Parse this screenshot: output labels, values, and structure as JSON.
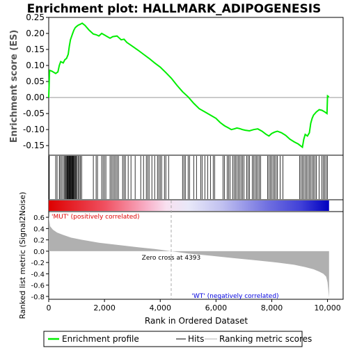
{
  "chart_data": {
    "type": "line",
    "title": "Enrichment plot: HALLMARK_ADIPOGENESIS",
    "top_panel": {
      "ylabel": "Enrichment score (ES)",
      "ylim": [
        -0.18,
        0.25
      ],
      "yticks": [
        -0.15,
        -0.1,
        -0.05,
        0.0,
        0.05,
        0.1,
        0.15,
        0.2,
        0.25
      ],
      "ytick_labels": [
        "-0.15",
        "-0.10",
        "-0.05",
        "0.00",
        "0.05",
        "0.10",
        "0.15",
        "0.20",
        "0.25"
      ],
      "series": [
        {
          "name": "Enrichment profile",
          "color": "#00ee00",
          "x": [
            0,
            30,
            120,
            250,
            330,
            380,
            430,
            520,
            580,
            640,
            700,
            740,
            780,
            820,
            860,
            900,
            950,
            1000,
            1060,
            1120,
            1200,
            1300,
            1450,
            1600,
            1700,
            1800,
            1900,
            2000,
            2100,
            2200,
            2300,
            2450,
            2600,
            2700,
            2800,
            3000,
            3200,
            3400,
            3600,
            3800,
            4000,
            4200,
            4400,
            4600,
            4800,
            5000,
            5200,
            5400,
            5600,
            5800,
            6000,
            6150,
            6300,
            6450,
            6550,
            6650,
            6750,
            6850,
            6950,
            7050,
            7200,
            7350,
            7500,
            7650,
            7800,
            7900,
            8000,
            8100,
            8200,
            8350,
            8500,
            8650,
            8800,
            8950,
            9100,
            9150,
            9200,
            9280,
            9350,
            9400,
            9450,
            9500,
            9600,
            9700,
            9800,
            9900,
            9980,
            10000,
            10050
          ],
          "y": [
            0.0,
            0.085,
            0.082,
            0.075,
            0.08,
            0.1,
            0.112,
            0.108,
            0.118,
            0.122,
            0.135,
            0.16,
            0.18,
            0.19,
            0.2,
            0.21,
            0.218,
            0.222,
            0.226,
            0.228,
            0.232,
            0.225,
            0.21,
            0.198,
            0.196,
            0.192,
            0.2,
            0.195,
            0.19,
            0.185,
            0.19,
            0.192,
            0.18,
            0.182,
            0.172,
            0.16,
            0.148,
            0.135,
            0.122,
            0.108,
            0.095,
            0.078,
            0.06,
            0.038,
            0.018,
            0.002,
            -0.018,
            -0.035,
            -0.045,
            -0.055,
            -0.065,
            -0.078,
            -0.088,
            -0.095,
            -0.1,
            -0.098,
            -0.095,
            -0.097,
            -0.1,
            -0.102,
            -0.104,
            -0.1,
            -0.098,
            -0.105,
            -0.115,
            -0.12,
            -0.112,
            -0.108,
            -0.105,
            -0.11,
            -0.118,
            -0.13,
            -0.138,
            -0.145,
            -0.155,
            -0.13,
            -0.115,
            -0.12,
            -0.11,
            -0.08,
            -0.065,
            -0.055,
            -0.045,
            -0.038,
            -0.04,
            -0.045,
            -0.05,
            0.005,
            0.002
          ]
        }
      ]
    },
    "hits_panel": {
      "hit_positions": [
        20,
        250,
        300,
        380,
        420,
        470,
        520,
        560,
        600,
        620,
        650,
        670,
        690,
        710,
        730,
        750,
        770,
        790,
        810,
        830,
        850,
        870,
        890,
        910,
        930,
        960,
        990,
        1020,
        1060,
        1100,
        1140,
        1180,
        1600,
        1700,
        1750,
        1900,
        1950,
        2000,
        2050,
        2200,
        2250,
        2300,
        2350,
        2400,
        2450,
        2500,
        2650,
        2700,
        2750,
        2850,
        2950,
        3100,
        3300,
        3400,
        3500,
        3550,
        3600,
        3700,
        3800,
        3900,
        3950,
        4000,
        4050,
        4150,
        4200,
        4300,
        4800,
        4850,
        4900,
        5000,
        5050,
        5200,
        5300,
        5450,
        5500,
        5600,
        5700,
        5800,
        5900,
        5950,
        6250,
        6300,
        6400,
        6450,
        6500,
        6600,
        6650,
        6700,
        6750,
        6800,
        6850,
        6900,
        6950,
        7000,
        7100,
        7150,
        7200,
        7300,
        7350,
        7400,
        7450,
        7500,
        7550,
        7600,
        7850,
        7900,
        7950,
        8000,
        8050,
        8100,
        8150,
        8200,
        8300,
        8400,
        9000,
        9050,
        9100,
        9150,
        9200,
        9250,
        9300,
        9350,
        9400,
        9450,
        9500,
        9550,
        9600,
        9700,
        9800,
        9850,
        9900,
        9950,
        10000
      ]
    },
    "metric_panel": {
      "ylabel": "Ranked list metric (Signal2Noise)",
      "ylim": [
        -0.85,
        0.7
      ],
      "yticks": [
        -0.8,
        -0.6,
        -0.4,
        -0.2,
        0.0,
        0.2,
        0.4,
        0.6
      ],
      "ytick_labels": [
        "-0.8",
        "-0.6",
        "-0.4",
        "-0.2",
        "0.0",
        "0.2",
        "0.4",
        "0.6"
      ],
      "x": [
        0,
        50,
        150,
        300,
        500,
        800,
        1200,
        1800,
        2500,
        3200,
        3800,
        4393,
        5000,
        5800,
        6600,
        7400,
        8200,
        8800,
        9200,
        9500,
        9700,
        9850,
        9950,
        10000,
        10030,
        10055
      ],
      "y": [
        0.62,
        0.44,
        0.38,
        0.33,
        0.29,
        0.24,
        0.2,
        0.15,
        0.11,
        0.07,
        0.04,
        0.0,
        -0.04,
        -0.08,
        -0.12,
        -0.16,
        -0.2,
        -0.24,
        -0.28,
        -0.32,
        -0.36,
        -0.4,
        -0.45,
        -0.55,
        -0.7,
        -0.82
      ],
      "zero_cross_label": "Zero cross at 4393",
      "zero_cross_x": 4393,
      "pos_label": "'MUT' (positively correlated)",
      "neg_label": "'WT' (negatively correlated)",
      "pos_color": "#dd0000",
      "neg_color": "#0000dd",
      "fill_color": "#b0b0b0"
    },
    "xaxis": {
      "xlabel": "Rank in Ordered Dataset",
      "xlim": [
        0,
        10560
      ],
      "xticks": [
        0,
        2000,
        4000,
        6000,
        8000,
        10000
      ],
      "xtick_labels": [
        "0",
        "2,000",
        "4,000",
        "6,000",
        "8,000",
        "10,000"
      ]
    },
    "legend": {
      "placement": "bottom",
      "items": [
        {
          "label": "Enrichment profile",
          "color": "#00ee00"
        },
        {
          "label": "Hits",
          "color": "#000000"
        },
        {
          "label": "Ranking metric scores",
          "color": "#b0b0b0"
        }
      ]
    }
  }
}
